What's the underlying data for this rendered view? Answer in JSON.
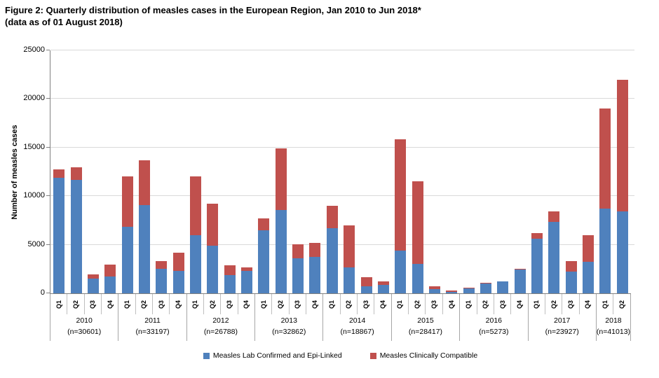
{
  "colors": {
    "lab_confirmed": "#4F81BD",
    "clinically_compatible": "#C0504D",
    "gridline": "#D9D9D9",
    "axis_line": "#808080",
    "year_separator": "#A6A6A6",
    "quarter_separator": "#BFBFBF",
    "text": "#000000"
  },
  "chart_data": {
    "type": "bar",
    "stacked": true,
    "title": "Figure 2: Quarterly distribution of measles cases in the European Region, Jan 2010 to Jun 2018*",
    "subtitle": "(data as of 01 August 2018)",
    "xlabel": "",
    "ylabel": "Number of measles cases",
    "ylim": [
      0,
      25000
    ],
    "yticks": [
      0,
      5000,
      10000,
      15000,
      20000,
      25000
    ],
    "grid": "horizontal",
    "legend_position": "bottom",
    "legend": [
      {
        "name": "Measles Lab Confirmed and Epi-Linked",
        "color": "#4F81BD"
      },
      {
        "name": "Measles Clinically Compatible",
        "color": "#C0504D"
      }
    ],
    "groups": [
      {
        "year": "2010",
        "n": "(n=30601)",
        "quarters": [
          "Q1",
          "Q2",
          "Q3",
          "Q4"
        ],
        "lab_confirmed": [
          11900,
          11700,
          1550,
          1750
        ],
        "clinically_compatible": [
          850,
          1250,
          400,
          1200
        ]
      },
      {
        "year": "2011",
        "n": "(n=33197)",
        "quarters": [
          "Q1",
          "Q2",
          "Q3",
          "Q4"
        ],
        "lab_confirmed": [
          6850,
          9050,
          2550,
          2330
        ],
        "clinically_compatible": [
          5200,
          4650,
          750,
          1820
        ]
      },
      {
        "year": "2012",
        "n": "(n=26788)",
        "quarters": [
          "Q1",
          "Q2",
          "Q3",
          "Q4"
        ],
        "lab_confirmed": [
          5950,
          4900,
          1850,
          2320
        ],
        "clinically_compatible": [
          6050,
          4350,
          1030,
          340
        ]
      },
      {
        "year": "2013",
        "n": "(n=32862)",
        "quarters": [
          "Q1",
          "Q2",
          "Q3",
          "Q4"
        ],
        "lab_confirmed": [
          6500,
          8600,
          3600,
          3760
        ],
        "clinically_compatible": [
          1200,
          6300,
          1450,
          1440
        ]
      },
      {
        "year": "2014",
        "n": "(n=18867)",
        "quarters": [
          "Q1",
          "Q2",
          "Q3",
          "Q4"
        ],
        "lab_confirmed": [
          6700,
          2700,
          700,
          900
        ],
        "clinically_compatible": [
          2300,
          4300,
          950,
          300
        ]
      },
      {
        "year": "2015",
        "n": "(n=28417)",
        "quarters": [
          "Q1",
          "Q2",
          "Q3",
          "Q4"
        ],
        "lab_confirmed": [
          4400,
          3050,
          420,
          150
        ],
        "clinically_compatible": [
          11450,
          8450,
          330,
          150
        ]
      },
      {
        "year": "2016",
        "n": "(n=5273)",
        "quarters": [
          "Q1",
          "Q2",
          "Q3",
          "Q4"
        ],
        "lab_confirmed": [
          500,
          980,
          1250,
          2430
        ],
        "clinically_compatible": [
          60,
          20,
          0,
          20
        ]
      },
      {
        "year": "2017",
        "n": "(n=23927)",
        "quarters": [
          "Q1",
          "Q2",
          "Q3",
          "Q4"
        ],
        "lab_confirmed": [
          5650,
          7350,
          2250,
          3270
        ],
        "clinically_compatible": [
          550,
          1050,
          1080,
          2730
        ]
      },
      {
        "year": "2018",
        "n": "(n=41013)",
        "quarters": [
          "Q1",
          "Q2"
        ],
        "lab_confirmed": [
          8700,
          8400
        ],
        "clinically_compatible": [
          10300,
          13600
        ]
      }
    ]
  }
}
